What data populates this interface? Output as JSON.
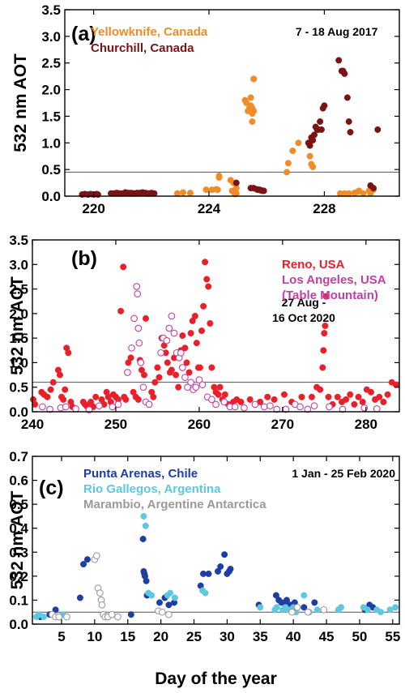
{
  "chart_data": [
    {
      "type": "scatter",
      "panel_label": "(a)",
      "date_range": "7 - 18 Aug 2017",
      "ylabel": "532 nm AOT",
      "xlabel": "",
      "xlim": [
        219,
        230.6
      ],
      "ylim": [
        0,
        3.5
      ],
      "xticks": [
        220,
        224,
        228
      ],
      "yticks": [
        "0.0",
        "0.5",
        "1.0",
        "1.5",
        "2.0",
        "2.5",
        "3.0",
        "3.5"
      ],
      "reference_line": 0.45,
      "series": [
        {
          "name": "Yellowknife, Canada",
          "color": "#f08c28",
          "marker": "filled",
          "x": [
            222.9,
            223.1,
            223.35,
            223.9,
            224.1,
            224.25,
            224.3,
            224.35,
            224.35,
            224.75,
            224.8,
            224.85,
            224.9,
            224.9,
            224.95,
            224.95,
            225.25,
            225.3,
            225.35,
            225.4,
            225.45,
            225.5,
            225.55,
            225.55,
            225.45,
            225.5,
            225.55,
            225.5,
            226.7,
            226.75,
            226.9,
            227.1,
            227.5,
            227.55,
            227.6,
            228.55,
            228.7,
            228.85,
            229.05,
            229.15,
            229.2,
            229.35,
            229.55,
            229.6,
            229.7
          ],
          "y": [
            0.05,
            0.07,
            0.06,
            0.12,
            0.12,
            0.13,
            0.12,
            0.35,
            0.38,
            0.3,
            0.1,
            0.25,
            0.08,
            0.04,
            0.15,
            0.05,
            1.8,
            1.75,
            1.6,
            1.65,
            1.7,
            1.65,
            2.2,
            2.2,
            1.85,
            1.55,
            1.6,
            1.4,
            0.45,
            0.62,
            0.85,
            1.0,
            0.75,
            0.6,
            0.55,
            0.05,
            0.05,
            0.05,
            0.06,
            0.08,
            0.1,
            0.05,
            0.1,
            0.05,
            0.12
          ]
        },
        {
          "name": "Churchill, Canada",
          "color": "#7a1414",
          "marker": "filled",
          "x": [
            219.6,
            219.7,
            219.8,
            219.9,
            220.0,
            220.1,
            220.15,
            220.6,
            220.7,
            220.8,
            220.9,
            221.0,
            221.1,
            221.2,
            221.3,
            221.4,
            221.5,
            221.6,
            221.7,
            221.8,
            221.9,
            222.0,
            222.1,
            224.95,
            225.45,
            225.55,
            225.65,
            225.7,
            225.75,
            225.8,
            225.85,
            225.9,
            227.45,
            227.5,
            227.55,
            227.6,
            227.65,
            227.7,
            227.75,
            227.8,
            227.85,
            227.9,
            227.95,
            228.0,
            228.5,
            228.6,
            228.65,
            228.7,
            228.8,
            228.85,
            228.9,
            229.6,
            229.7,
            229.85
          ],
          "y": [
            0.03,
            0.04,
            0.03,
            0.04,
            0.03,
            0.04,
            0.03,
            0.05,
            0.05,
            0.06,
            0.05,
            0.05,
            0.07,
            0.06,
            0.06,
            0.05,
            0.06,
            0.06,
            0.07,
            0.06,
            0.05,
            0.06,
            0.05,
            0.25,
            0.15,
            0.15,
            0.13,
            0.12,
            0.12,
            0.11,
            0.1,
            0.1,
            1.0,
            0.95,
            1.1,
            1.05,
            1.15,
            1.3,
            1.25,
            1.25,
            1.4,
            1.25,
            1.65,
            1.7,
            2.55,
            2.35,
            2.35,
            2.3,
            1.85,
            1.4,
            1.2,
            0.2,
            0.15,
            1.25
          ]
        }
      ]
    },
    {
      "type": "scatter",
      "panel_label": "(b)",
      "date_range": "27 Aug -\n16 Oct 2020",
      "ylabel": "532 nm AOT",
      "xlabel": "",
      "xlim": [
        240,
        284
      ],
      "ylim": [
        0,
        3.5
      ],
      "xticks": [
        240,
        250,
        260,
        270,
        280
      ],
      "yticks": [
        "0.0",
        "0.5",
        "1.0",
        "1.5",
        "2.0",
        "2.5",
        "3.0",
        "3.5"
      ],
      "reference_line": 0.6,
      "series": [
        {
          "name": "Reno, USA",
          "color": "#e8202a",
          "marker": "filled",
          "x": [
            240.1,
            240.3,
            241.1,
            241.4,
            241.8,
            242.2,
            242.5,
            243.1,
            243.3,
            243.5,
            243.7,
            243.9,
            244.1,
            244.3,
            244.6,
            244.8,
            246.1,
            246.3,
            246.6,
            247.0,
            247.3,
            247.6,
            248.3,
            248.6,
            248.9,
            249.1,
            249.4,
            249.7,
            250.0,
            250.3,
            250.6,
            250.9,
            251.0,
            251.2,
            251.5,
            251.8,
            252.1,
            252.4,
            252.7,
            252.9,
            253.1,
            253.4,
            253.6,
            254.3,
            254.5,
            254.7,
            255.0,
            255.2,
            255.5,
            255.8,
            256.0,
            256.2,
            256.5,
            256.7,
            257.0,
            257.2,
            257.5,
            257.8,
            258.0,
            258.3,
            258.5,
            258.8,
            259.0,
            259.2,
            259.5,
            259.7,
            259.9,
            260.1,
            260.3,
            260.5,
            260.7,
            260.9,
            261.1,
            261.3,
            261.5,
            261.8,
            262.0,
            262.3,
            262.5,
            262.8,
            263.1,
            263.5,
            264.1,
            264.5,
            265.0,
            266.1,
            267.3,
            268.2,
            269.0,
            270.2,
            271.1,
            272.3,
            273.5,
            274.1,
            274.5,
            274.8,
            274.9,
            275.0,
            275.1,
            275.2,
            275.5,
            276.0,
            276.6,
            277.1,
            277.6,
            278.1,
            278.6,
            279.1,
            279.6,
            280.1,
            280.6,
            281.1,
            281.6,
            282.1,
            282.6,
            283.1,
            283.6
          ],
          "y": [
            0.25,
            0.15,
            0.4,
            0.35,
            0.3,
            0.45,
            0.6,
            0.85,
            0.75,
            0.3,
            0.25,
            0.45,
            1.3,
            1.2,
            0.2,
            0.1,
            0.2,
            0.15,
            0.1,
            0.2,
            0.1,
            0.3,
            0.25,
            0.15,
            0.4,
            0.3,
            0.2,
            0.35,
            0.3,
            0.25,
            2.05,
            2.95,
            0.3,
            0.25,
            1.0,
            1.1,
            0.4,
            0.3,
            0.25,
            1.05,
            0.85,
            0.75,
            1.9,
            0.4,
            0.3,
            0.6,
            0.9,
            0.7,
            1.5,
            1.35,
            1.2,
            1.0,
            0.8,
            0.85,
            1.1,
            0.75,
            0.5,
            1.25,
            1.55,
            1.3,
            1.0,
            0.8,
            1.6,
            1.85,
            1.95,
            1.4,
            0.9,
            0.9,
            1.65,
            2.15,
            3.05,
            2.7,
            2.55,
            1.8,
            0.9,
            0.5,
            0.4,
            0.35,
            0.5,
            0.25,
            0.35,
            0.15,
            0.2,
            0.25,
            0.2,
            0.25,
            0.2,
            0.3,
            0.25,
            0.35,
            0.2,
            0.3,
            0.3,
            0.5,
            0.45,
            0.9,
            1.25,
            1.6,
            1.75,
            2.35,
            0.3,
            0.15,
            0.3,
            0.2,
            0.25,
            0.35,
            0.15,
            0.3,
            0.2,
            0.45,
            0.4,
            0.25,
            0.3,
            0.2,
            0.35,
            0.6,
            0.55
          ]
        },
        {
          "name": "Los Angeles, USA\n(Table Mountain)",
          "color": "#c040a8",
          "marker": "open",
          "x": [
            241.2,
            242.1,
            243.4,
            244.0,
            245.2,
            246.8,
            248.0,
            249.6,
            250.3,
            251.4,
            251.9,
            252.2,
            252.5,
            252.6,
            252.7,
            252.8,
            253.0,
            253.3,
            253.6,
            254.0,
            255.4,
            255.7,
            256.1,
            256.4,
            256.7,
            257.0,
            257.3,
            257.6,
            257.8,
            258.0,
            258.3,
            258.6,
            259.0,
            259.3,
            259.6,
            260.0,
            260.4,
            261.0,
            261.5,
            262.0,
            263.0,
            263.7,
            264.3,
            265.4,
            266.7,
            267.8,
            268.5,
            269.3,
            270.4,
            271.5,
            272.1,
            273.0,
            273.8,
            275.6,
            277.2,
            279.8,
            281.3
          ],
          "y": [
            0.1,
            0.05,
            0.08,
            0.1,
            0.06,
            0.04,
            0.12,
            0.1,
            0.15,
            0.8,
            1.3,
            1.9,
            2.55,
            2.4,
            1.7,
            1.4,
            1.0,
            0.5,
            0.2,
            0.15,
            1.2,
            1.5,
            1.45,
            1.7,
            1.95,
            1.6,
            1.2,
            1.1,
            1.2,
            0.9,
            0.7,
            0.5,
            0.6,
            0.45,
            0.5,
            0.65,
            0.55,
            0.3,
            0.25,
            0.15,
            0.2,
            0.1,
            0.1,
            0.08,
            0.15,
            0.1,
            0.12,
            0.05,
            0.05,
            0.15,
            0.1,
            0.05,
            0.12,
            0.1,
            0.05,
            0.08,
            0.06
          ]
        }
      ]
    },
    {
      "type": "scatter",
      "panel_label": "(c)",
      "date_range": "1 Jan - 25 Feb 2020",
      "ylabel": "532 nm AOT",
      "xlabel": "Day of the year",
      "xlim": [
        0.6,
        56
      ],
      "ylim": [
        0,
        0.7
      ],
      "xticks": [
        5,
        10,
        15,
        20,
        25,
        30,
        35,
        40,
        45,
        50,
        55
      ],
      "yticks": [
        "0.0",
        "0.1",
        "0.2",
        "0.3",
        "0.4",
        "0.5",
        "0.6",
        "0.7"
      ],
      "reference_line": 0.05,
      "series": [
        {
          "name": "Punta Arenas, Chile",
          "color": "#1e3ea0",
          "marker": "filled",
          "x": [
            1.8,
            3.2,
            4.1,
            7.8,
            8.3,
            8.9,
            15.5,
            17.3,
            17.4,
            17.5,
            17.6,
            17.8,
            17.9,
            19.8,
            20.6,
            21.2,
            22.0,
            26.0,
            26.4,
            27.2,
            28.6,
            29.0,
            29.6,
            30.0,
            30.3,
            30.5,
            34.8,
            37.4,
            37.8,
            38.2,
            38.7,
            39.0,
            39.4,
            39.8,
            40.2,
            41.6,
            43.2,
            50.8,
            51.5,
            52.0
          ],
          "y": [
            0.03,
            0.04,
            0.06,
            0.11,
            0.25,
            0.27,
            0.04,
            0.355,
            0.22,
            0.21,
            0.2,
            0.18,
            0.12,
            0.09,
            0.11,
            0.08,
            0.09,
            0.16,
            0.21,
            0.21,
            0.22,
            0.24,
            0.29,
            0.21,
            0.22,
            0.23,
            0.08,
            0.12,
            0.1,
            0.09,
            0.09,
            0.1,
            0.08,
            0.08,
            0.09,
            0.07,
            0.09,
            0.06,
            0.08,
            0.07
          ]
        },
        {
          "name": "Rio Gallegos, Argentina",
          "color": "#5ec8e0",
          "marker": "filled",
          "x": [
            1.2,
            1.6,
            2.3,
            5.2,
            17.4,
            17.7,
            18.1,
            18.6,
            21.0,
            21.4,
            22.1,
            26.3,
            26.7,
            35.0,
            37.2,
            37.5,
            38.4,
            38.8,
            39.2,
            39.6,
            40.0,
            40.4,
            41.6,
            42.4,
            43.6,
            46.8,
            47.2,
            50.6,
            51.2,
            52.6,
            53.2,
            54.6,
            55.4
          ],
          "y": [
            0.03,
            0.04,
            0.03,
            0.04,
            0.45,
            0.41,
            0.13,
            0.12,
            0.12,
            0.13,
            0.11,
            0.14,
            0.13,
            0.07,
            0.06,
            0.07,
            0.06,
            0.07,
            0.06,
            0.06,
            0.07,
            0.05,
            0.12,
            0.05,
            0.06,
            0.06,
            0.07,
            0.07,
            0.06,
            0.06,
            0.05,
            0.06,
            0.07
          ]
        },
        {
          "name": "Marambio, Argentine Antarctica",
          "color": "#9a9a9a",
          "marker": "open",
          "x": [
            3.6,
            4.1,
            4.6,
            5.8,
            10.0,
            10.3,
            10.5,
            10.8,
            11.0,
            11.1,
            11.3,
            11.6,
            12.0,
            12.6,
            13.5,
            19.6,
            20.2,
            21.2,
            39.8,
            40.6,
            42.2,
            44.6
          ],
          "y": [
            0.04,
            0.03,
            0.03,
            0.03,
            0.27,
            0.285,
            0.15,
            0.13,
            0.1,
            0.08,
            0.04,
            0.03,
            0.03,
            0.04,
            0.03,
            0.055,
            0.05,
            0.04,
            0.05,
            0.07,
            0.05,
            0.06
          ]
        }
      ]
    }
  ]
}
